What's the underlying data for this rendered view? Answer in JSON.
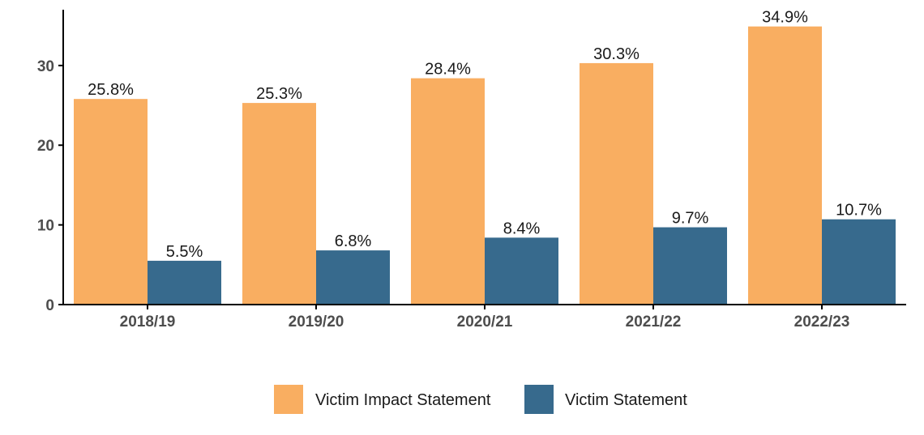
{
  "chart_data": {
    "type": "bar",
    "categories": [
      "2018/19",
      "2019/20",
      "2020/21",
      "2021/22",
      "2022/23"
    ],
    "series": [
      {
        "name": "Victim Impact Statement",
        "values": [
          25.8,
          25.3,
          28.4,
          30.3,
          34.9
        ],
        "labels": [
          "25.8%",
          "25.3%",
          "28.4%",
          "30.3%",
          "34.9%"
        ],
        "color": "#F9AE61"
      },
      {
        "name": "Victim Statement",
        "values": [
          5.5,
          6.8,
          8.4,
          9.7,
          10.7
        ],
        "labels": [
          "5.5%",
          "6.8%",
          "8.4%",
          "9.7%",
          "10.7%"
        ],
        "color": "#376A8D"
      }
    ],
    "y_ticks": [
      0,
      10,
      20,
      30
    ],
    "y_tick_labels": [
      "0",
      "10",
      "20",
      "30"
    ],
    "ylim": [
      0,
      37
    ],
    "title": "",
    "xlabel": "",
    "ylabel": "",
    "grid": false,
    "legend_position": "bottom"
  }
}
